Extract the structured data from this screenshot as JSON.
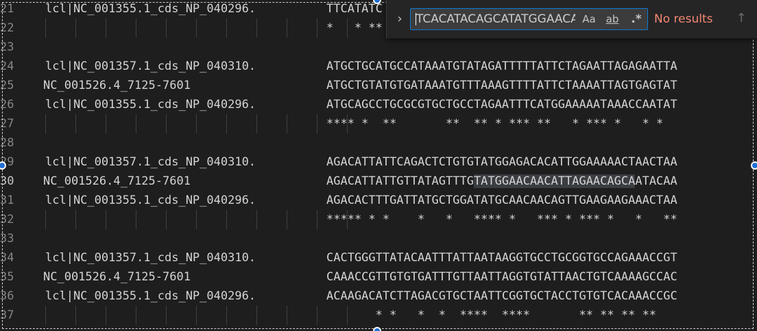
{
  "editor": {
    "lines": [
      {
        "num": "21",
        "name": "lcl|NC_001355.1_cds_NP_040296.",
        "seq": "TTCATATC",
        "kind": "lcl"
      },
      {
        "num": "22",
        "name": "",
        "seq": "*   * **",
        "kind": "cons"
      },
      {
        "num": "23",
        "name": "",
        "seq": "",
        "kind": "blank"
      },
      {
        "num": "24",
        "name": "lcl|NC_001357.1_cds_NP_040310.",
        "seq": "ATGCTGCATGCCATAAATGTATAGATTTTTATTCTAGAATTAGAGAATTA",
        "kind": "lcl"
      },
      {
        "num": "25",
        "name": "NC_001526.4_7125-7601",
        "seq": "ATGCTGTATGTGATAAATGTTTAAAGTTTTATTCTAAAATTAGTGAGTAT",
        "kind": "nc"
      },
      {
        "num": "26",
        "name": "lcl|NC_001355.1_cds_NP_040296.",
        "seq": "ATGCAGCCTGCGCGTGCTGCCTAGAATTTCATGGAAAAATAAACCAATAT",
        "kind": "lcl"
      },
      {
        "num": "27",
        "name": "",
        "seq": "**** *  **       **  ** * *** **   * *** *   * *",
        "kind": "cons"
      },
      {
        "num": "28",
        "name": "",
        "seq": "",
        "kind": "blank"
      },
      {
        "num": "29",
        "name": "lcl|NC_001357.1_cds_NP_040310.",
        "seq": "AGACATTATTCAGACTCTGTGTATGGAGACACATTGGAAAAACTAACTAA",
        "kind": "lcl"
      },
      {
        "num": "30",
        "name": "NC_001526.4_7125-7601",
        "seq_pre": "AGACATTATTGTTATAGTTTG",
        "seq_hl": "TATGGAACAACATTAGAACAGCA",
        "seq_post": "ATACAA",
        "kind": "nc-hl",
        "active": true
      },
      {
        "num": "31",
        "name": "lcl|NC_001355.1_cds_NP_040296.",
        "seq": "AGACACTTTGATTATGCTGGATATGCAACAACAGTTGAAGAAGAAACTAA",
        "kind": "lcl"
      },
      {
        "num": "32",
        "name": "",
        "seq": "***** * *    *   *   **** *   *** * *** *   *   **",
        "kind": "cons"
      },
      {
        "num": "33",
        "name": "",
        "seq": "",
        "kind": "blank"
      },
      {
        "num": "34",
        "name": "lcl|NC_001357.1_cds_NP_040310.",
        "seq": "CACTGGGTTATACAATTTATTAATAAGGTGCCTGCGGTGCCAGAAACCGT",
        "kind": "lcl"
      },
      {
        "num": "35",
        "name": "NC_001526.4_7125-7601",
        "seq": "CAAACCGTTGTGTGATTTGTTAATTAGGTGTATTAACTGTCAAAAGCCAC",
        "kind": "nc"
      },
      {
        "num": "36",
        "name": "lcl|NC_001355.1_cds_NP_040296.",
        "seq": "ACAAGACATCTTAGACGTGCTAATTCGGTGCTACCTGTGTCACAAACCGC",
        "kind": "lcl"
      },
      {
        "num": "37",
        "name": "",
        "seq": "       * *   *  *  ****  ****       ** ** ** **",
        "kind": "cons"
      }
    ]
  },
  "find_widget": {
    "toggle_icon": "›",
    "search_value": "TCACATACAGCATATGGAACAACATTAGAACAGCA",
    "match_case_label": "Aa",
    "whole_word_label": "ab",
    "regex_label": ".*",
    "status": "No results",
    "prev_icon": "↑",
    "status_color": "#f48771",
    "accent_color": "#0e7ad3"
  }
}
